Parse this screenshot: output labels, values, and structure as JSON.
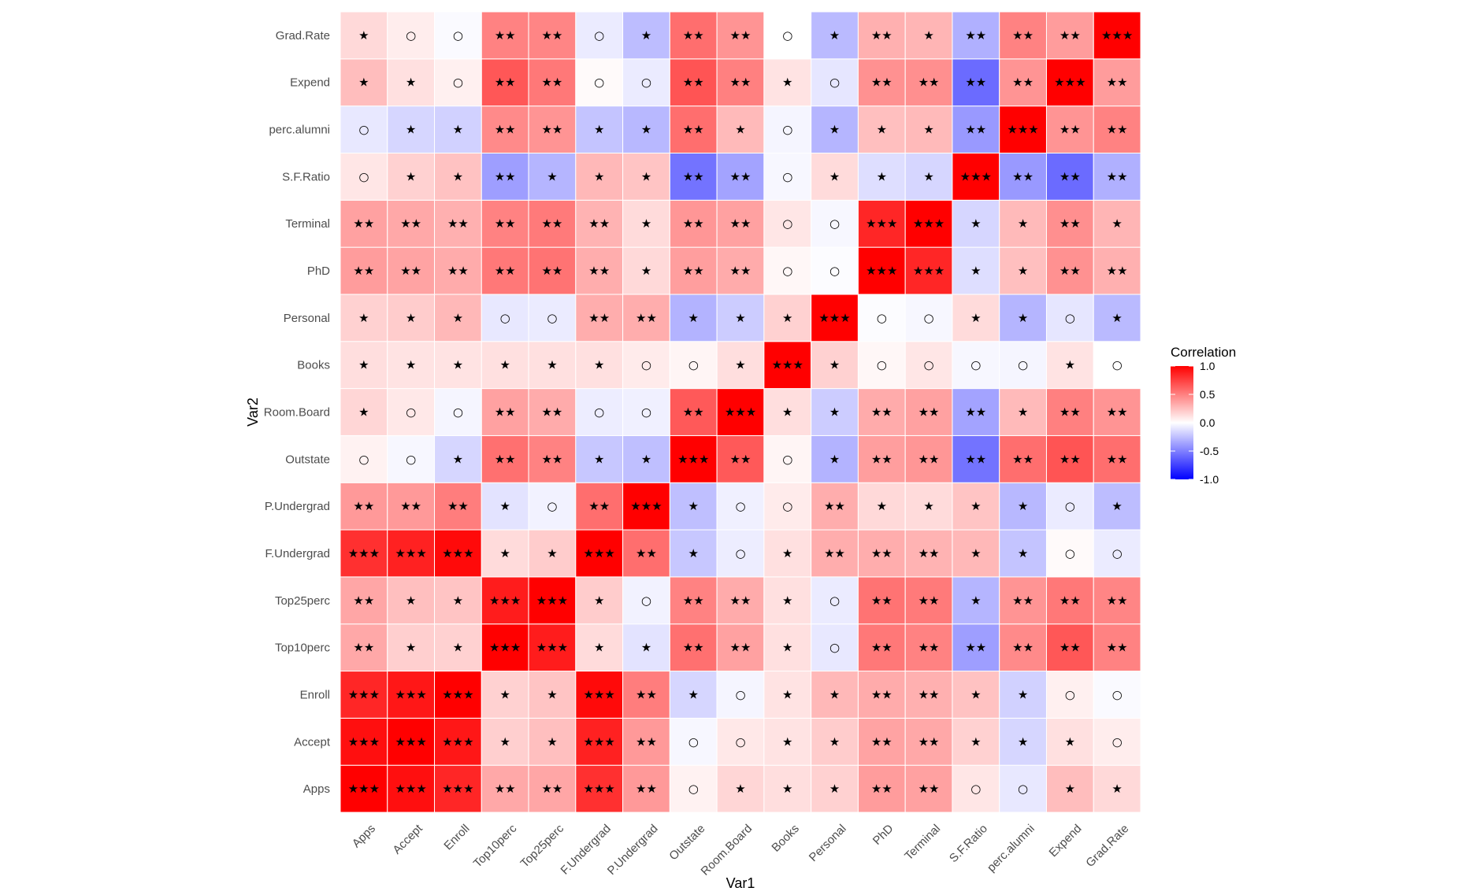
{
  "chart_data": {
    "type": "heatmap",
    "xlabel": "Var1",
    "ylabel": "Var2",
    "variables": [
      "Apps",
      "Accept",
      "Enroll",
      "Top10perc",
      "Top25perc",
      "F.Undergrad",
      "P.Undergrad",
      "Outstate",
      "Room.Board",
      "Books",
      "Personal",
      "PhD",
      "Terminal",
      "S.F.Ratio",
      "perc.alumni",
      "Expend",
      "Grad.Rate"
    ],
    "legend": {
      "title": "Correlation",
      "ticks": [
        1.0,
        0.5,
        0.0,
        -0.5,
        -1.0
      ],
      "tick_labels": [
        "1.0",
        "0.5",
        "0.0",
        "-0.5",
        "-1.0"
      ],
      "low_color": "#0000ff",
      "mid_color": "#ffffff",
      "high_color": "#ff0000",
      "limits": [
        -1,
        1
      ]
    },
    "matrix": [
      [
        1.0,
        0.94,
        0.85,
        0.34,
        0.35,
        0.81,
        0.4,
        0.05,
        0.16,
        0.13,
        0.18,
        0.39,
        0.37,
        0.1,
        -0.09,
        0.26,
        0.15
      ],
      [
        0.94,
        1.0,
        0.91,
        0.19,
        0.25,
        0.87,
        0.4,
        -0.03,
        0.09,
        0.11,
        0.2,
        0.36,
        0.34,
        0.18,
        -0.16,
        0.12,
        0.07
      ],
      [
        0.85,
        0.91,
        1.0,
        0.18,
        0.23,
        0.96,
        0.51,
        -0.16,
        -0.04,
        0.11,
        0.28,
        0.33,
        0.31,
        0.24,
        -0.18,
        0.06,
        -0.02
      ],
      [
        0.34,
        0.19,
        0.18,
        1.0,
        0.89,
        0.14,
        -0.11,
        0.56,
        0.37,
        0.12,
        -0.09,
        0.53,
        0.49,
        -0.38,
        0.46,
        0.66,
        0.49
      ],
      [
        0.35,
        0.25,
        0.23,
        0.89,
        1.0,
        0.2,
        -0.05,
        0.49,
        0.33,
        0.12,
        -0.08,
        0.55,
        0.52,
        -0.29,
        0.42,
        0.53,
        0.48
      ],
      [
        0.81,
        0.87,
        0.96,
        0.14,
        0.2,
        1.0,
        0.57,
        -0.22,
        -0.07,
        0.12,
        0.32,
        0.32,
        0.3,
        0.28,
        -0.23,
        0.02,
        -0.08
      ],
      [
        0.4,
        0.4,
        0.51,
        -0.11,
        -0.05,
        0.57,
        1.0,
        -0.25,
        -0.06,
        0.08,
        0.32,
        0.15,
        0.14,
        0.23,
        -0.28,
        -0.08,
        -0.26
      ],
      [
        0.05,
        -0.03,
        -0.16,
        0.56,
        0.49,
        -0.22,
        -0.25,
        1.0,
        0.65,
        0.04,
        -0.3,
        0.38,
        0.41,
        -0.55,
        0.57,
        0.67,
        0.57
      ],
      [
        0.16,
        0.09,
        -0.04,
        0.37,
        0.33,
        -0.07,
        -0.06,
        0.65,
        1.0,
        0.13,
        -0.2,
        0.33,
        0.37,
        -0.36,
        0.27,
        0.5,
        0.42
      ],
      [
        0.13,
        0.11,
        0.11,
        0.12,
        0.12,
        0.12,
        0.08,
        0.04,
        0.13,
        1.0,
        0.18,
        0.03,
        0.1,
        -0.03,
        -0.04,
        0.11,
        0.0
      ],
      [
        0.18,
        0.2,
        0.28,
        -0.09,
        -0.08,
        0.32,
        0.32,
        -0.3,
        -0.2,
        0.18,
        1.0,
        -0.01,
        -0.03,
        0.14,
        -0.29,
        -0.1,
        -0.27
      ],
      [
        0.39,
        0.36,
        0.33,
        0.53,
        0.55,
        0.32,
        0.15,
        0.38,
        0.33,
        0.03,
        -0.01,
        1.0,
        0.85,
        -0.13,
        0.25,
        0.43,
        0.31
      ],
      [
        0.37,
        0.34,
        0.31,
        0.49,
        0.52,
        0.3,
        0.14,
        0.41,
        0.37,
        0.1,
        -0.03,
        0.85,
        1.0,
        -0.16,
        0.27,
        0.44,
        0.29
      ],
      [
        0.1,
        0.18,
        0.24,
        -0.38,
        -0.29,
        0.28,
        0.23,
        -0.55,
        -0.36,
        -0.03,
        0.14,
        -0.13,
        -0.16,
        1.0,
        -0.4,
        -0.58,
        -0.31
      ],
      [
        -0.09,
        -0.16,
        -0.18,
        0.46,
        0.42,
        -0.23,
        -0.28,
        0.57,
        0.27,
        -0.04,
        -0.29,
        0.25,
        0.27,
        -0.4,
        1.0,
        0.42,
        0.49
      ],
      [
        0.26,
        0.12,
        0.06,
        0.66,
        0.53,
        0.02,
        -0.08,
        0.67,
        0.5,
        0.11,
        -0.1,
        0.43,
        0.44,
        -0.58,
        0.42,
        1.0,
        0.39
      ],
      [
        0.15,
        0.07,
        -0.02,
        0.49,
        0.48,
        -0.08,
        -0.26,
        0.57,
        0.42,
        0.0,
        -0.27,
        0.31,
        0.29,
        -0.31,
        0.49,
        0.39,
        1.0
      ]
    ],
    "labels": [
      [
        "★★★",
        "★★★",
        "★★★",
        "★★",
        "★★",
        "★★★",
        "★★",
        "○",
        "★",
        "★",
        "★",
        "★★",
        "★★",
        "○",
        "○",
        "★",
        "★"
      ],
      [
        "★★★",
        "★★★",
        "★★★",
        "★",
        "★",
        "★★★",
        "★★",
        "○",
        "○",
        "★",
        "★",
        "★★",
        "★★",
        "★",
        "★",
        "★",
        "○"
      ],
      [
        "★★★",
        "★★★",
        "★★★",
        "★",
        "★",
        "★★★",
        "★★",
        "★",
        "○",
        "★",
        "★",
        "★★",
        "★★",
        "★",
        "★",
        "○",
        "○"
      ],
      [
        "★★",
        "★",
        "★",
        "★★★",
        "★★★",
        "★",
        "★",
        "★★",
        "★★",
        "★",
        "○",
        "★★",
        "★★",
        "★★",
        "★★",
        "★★",
        "★★"
      ],
      [
        "★★",
        "★",
        "★",
        "★★★",
        "★★★",
        "★",
        "○",
        "★★",
        "★★",
        "★",
        "○",
        "★★",
        "★★",
        "★",
        "★★",
        "★★",
        "★★"
      ],
      [
        "★★★",
        "★★★",
        "★★★",
        "★",
        "★",
        "★★★",
        "★★",
        "★",
        "○",
        "★",
        "★★",
        "★★",
        "★★",
        "★",
        "★",
        "○",
        "○"
      ],
      [
        "★★",
        "★★",
        "★★",
        "★",
        "○",
        "★★",
        "★★★",
        "★",
        "○",
        "○",
        "★★",
        "★",
        "★",
        "★",
        "★",
        "○",
        "★"
      ],
      [
        "○",
        "○",
        "★",
        "★★",
        "★★",
        "★",
        "★",
        "★★★",
        "★★",
        "○",
        "★",
        "★★",
        "★★",
        "★★",
        "★★",
        "★★",
        "★★"
      ],
      [
        "★",
        "○",
        "○",
        "★★",
        "★★",
        "○",
        "○",
        "★★",
        "★★★",
        "★",
        "★",
        "★★",
        "★★",
        "★★",
        "★",
        "★★",
        "★★"
      ],
      [
        "★",
        "★",
        "★",
        "★",
        "★",
        "★",
        "○",
        "○",
        "★",
        "★★★",
        "★",
        "○",
        "○",
        "○",
        "○",
        "★",
        "○"
      ],
      [
        "★",
        "★",
        "★",
        "○",
        "○",
        "★★",
        "★★",
        "★",
        "★",
        "★",
        "★★★",
        "○",
        "○",
        "★",
        "★",
        "○",
        "★"
      ],
      [
        "★★",
        "★★",
        "★★",
        "★★",
        "★★",
        "★★",
        "★",
        "★★",
        "★★",
        "○",
        "○",
        "★★★",
        "★★★",
        "★",
        "★",
        "★★",
        "★★"
      ],
      [
        "★★",
        "★★",
        "★★",
        "★★",
        "★★",
        "★★",
        "★",
        "★★",
        "★★",
        "○",
        "○",
        "★★★",
        "★★★",
        "★",
        "★",
        "★★",
        "★"
      ],
      [
        "○",
        "★",
        "★",
        "★★",
        "★",
        "★",
        "★",
        "★★",
        "★★",
        "○",
        "★",
        "★",
        "★",
        "★★★",
        "★★",
        "★★",
        "★★"
      ],
      [
        "○",
        "★",
        "★",
        "★★",
        "★★",
        "★",
        "★",
        "★★",
        "★",
        "○",
        "★",
        "★",
        "★",
        "★★",
        "★★★",
        "★★",
        "★★"
      ],
      [
        "★",
        "★",
        "○",
        "★★",
        "★★",
        "○",
        "○",
        "★★",
        "★★",
        "★",
        "○",
        "★★",
        "★★",
        "★★",
        "★★",
        "★★★",
        "★★"
      ],
      [
        "★",
        "○",
        "○",
        "★★",
        "★★",
        "○",
        "★",
        "★★",
        "★★",
        "○",
        "★",
        "★★",
        "★",
        "★★",
        "★★",
        "★★",
        "★★★"
      ]
    ],
    "grid": false,
    "legend_position": "right"
  }
}
